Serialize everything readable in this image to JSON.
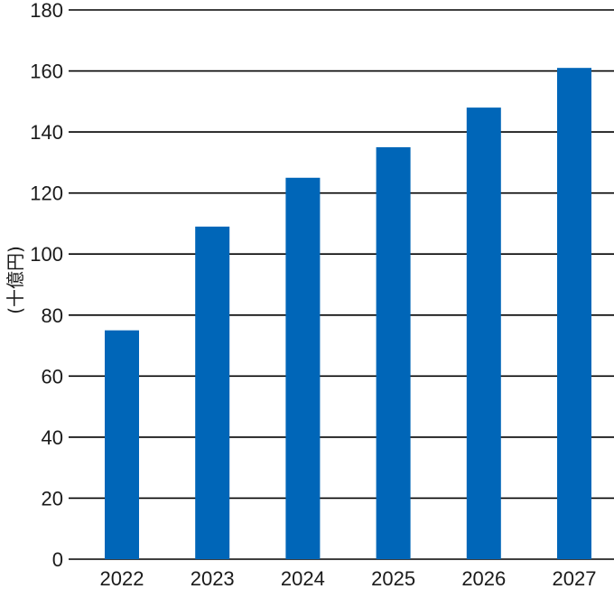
{
  "chart_data": {
    "type": "bar",
    "title": "",
    "xlabel": "",
    "ylabel": "(十億円)",
    "categories": [
      "2022",
      "2023",
      "2024",
      "2025",
      "2026",
      "2027"
    ],
    "values": [
      75,
      109,
      125,
      135,
      148,
      161
    ],
    "ylim": [
      0,
      180
    ],
    "yticks": [
      0,
      20,
      40,
      60,
      80,
      100,
      120,
      140,
      160,
      180
    ],
    "grid": true,
    "bar_color": "#0066b8"
  }
}
